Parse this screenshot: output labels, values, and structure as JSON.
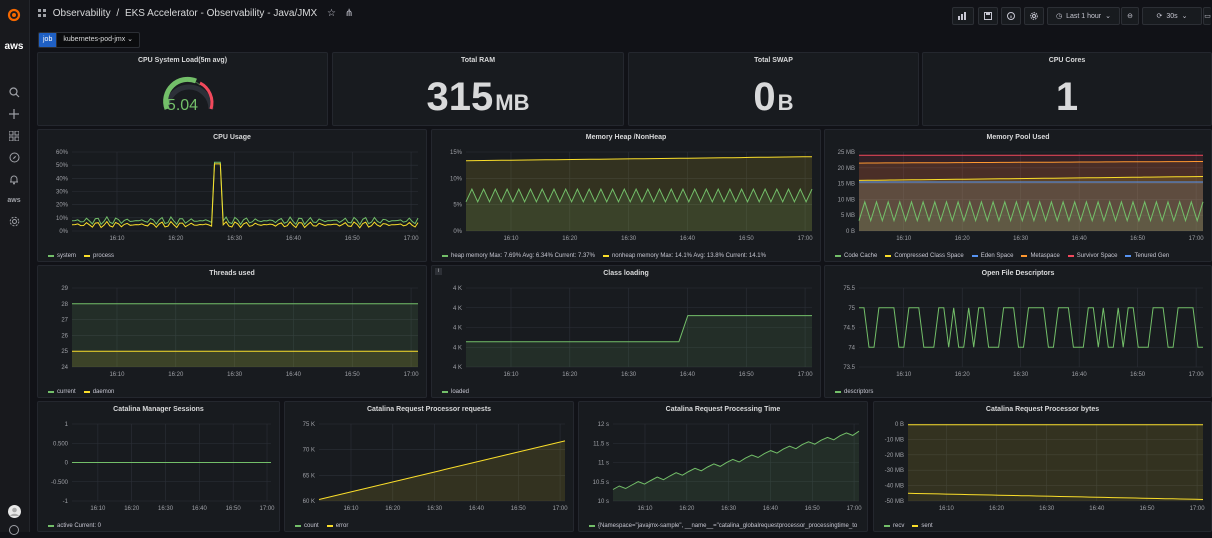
{
  "breadcrumb": {
    "root": "Observability",
    "sep": "/",
    "title": "EKS Accelerator - Observability - Java/JMX"
  },
  "toolbar": {
    "time_range": "Last 1 hour",
    "refresh": "30s"
  },
  "variable": {
    "key": "job",
    "value": "kubernetes-pod-jmx"
  },
  "sidebar": {
    "logo_text": "aws",
    "service_text": "aws"
  },
  "colors": {
    "green": "#73bf69",
    "yellow": "#fade2a",
    "orange": "#ff9830",
    "red": "#f2495c",
    "blue": "#5794f2",
    "grid": "#2c3038",
    "tick": "#9fa1a7"
  },
  "panels": [
    {
      "id": "cpu_load",
      "title": "CPU System Load(5m avg)",
      "value": "5.04",
      "gauge_fraction": 0.72
    },
    {
      "id": "total_ram",
      "title": "Total RAM",
      "value": "315",
      "unit": "MB"
    },
    {
      "id": "total_swap",
      "title": "Total SWAP",
      "value": "0",
      "unit": "B"
    },
    {
      "id": "cpu_cores",
      "title": "CPU Cores",
      "value": "1"
    }
  ],
  "xticks": [
    "16:10",
    "16:20",
    "16:30",
    "16:40",
    "16:50",
    "17:00"
  ],
  "charts": [
    {
      "id": "cpu_usage",
      "title": "CPU Usage",
      "yticks": [
        "60%",
        "50%",
        "40%",
        "30%",
        "20%",
        "10%",
        "0%"
      ],
      "series": [
        {
          "name": "system",
          "color": "#73bf69",
          "kind": "noisy",
          "base": 0.13,
          "amp": 0.05,
          "spike": 0.87
        },
        {
          "name": "process",
          "color": "#fade2a",
          "kind": "noisy",
          "base": 0.08,
          "amp": 0.04,
          "spike": 0.85
        }
      ],
      "legend": [
        {
          "name": "system",
          "color": "#73bf69"
        },
        {
          "name": "process",
          "color": "#fade2a"
        }
      ]
    },
    {
      "id": "mem_heap",
      "title": "Memory Heap /NonHeap",
      "yticks": [
        "15%",
        "10%",
        "5%",
        "0%"
      ],
      "series": [
        {
          "name": "nonheap memory",
          "color": "#fade2a",
          "kind": "flat",
          "from": 0.89,
          "to": 0.94,
          "fill": true
        },
        {
          "name": "heap memory",
          "color": "#73bf69",
          "kind": "zigzag",
          "base": 0.45,
          "amp": 0.08,
          "fill": true
        }
      ],
      "legend": [
        {
          "name": "heap memory",
          "color": "#73bf69",
          "stats": "Max: 7.69%  Avg: 6.34%  Current: 7.37%"
        },
        {
          "name": "nonheap memory",
          "color": "#fade2a",
          "stats": "Max: 14.1%  Avg: 13.8%  Current: 14.1%"
        }
      ]
    },
    {
      "id": "mem_pool",
      "title": "Memory Pool Used",
      "yticks": [
        "25 MB",
        "20 MB",
        "15 MB",
        "10 MB",
        "5 MB",
        "0 B"
      ],
      "series": [
        {
          "name": "Tenured Gen",
          "color": "#f2495c",
          "kind": "flat",
          "from": 0.96,
          "to": 0.96,
          "fill": true
        },
        {
          "name": "Survivor Space",
          "color": "#ff9830",
          "kind": "flat",
          "from": 0.86,
          "to": 0.88,
          "fill": true
        },
        {
          "name": "Compressed Class Space",
          "color": "#fade2a",
          "kind": "flat",
          "from": 0.64,
          "to": 0.69,
          "fill": true
        },
        {
          "name": "Metaspace",
          "color": "#5794f2",
          "kind": "flat",
          "from": 0.62,
          "to": 0.62,
          "fill": true
        },
        {
          "name": "Eden Space",
          "color": "#73bf69",
          "kind": "zigzag",
          "base": 0.25,
          "amp": 0.12,
          "fill": true
        }
      ],
      "legend": [
        {
          "name": "Code Cache",
          "color": "#73bf69"
        },
        {
          "name": "Compressed Class Space",
          "color": "#fade2a"
        },
        {
          "name": "Eden Space",
          "color": "#5794f2"
        },
        {
          "name": "Metaspace",
          "color": "#ff9830"
        },
        {
          "name": "Survivor Space",
          "color": "#f2495c"
        },
        {
          "name": "Tenured Gen",
          "color": "#5794f2"
        }
      ]
    },
    {
      "id": "threads",
      "title": "Threads used",
      "yticks": [
        "29",
        "28",
        "27",
        "26",
        "25",
        "24"
      ],
      "series": [
        {
          "name": "current",
          "color": "#73bf69",
          "kind": "flat",
          "from": 0.8,
          "to": 0.8,
          "fill": true
        },
        {
          "name": "daemon",
          "color": "#fade2a",
          "kind": "flat",
          "from": 0.2,
          "to": 0.2,
          "fill": true
        }
      ],
      "legend": [
        {
          "name": "current",
          "color": "#73bf69"
        },
        {
          "name": "daemon",
          "color": "#fade2a"
        }
      ]
    },
    {
      "id": "class_loading",
      "title": "Class loading",
      "yticks": [
        "4 K",
        "4 K",
        "4 K",
        "4 K",
        "4 K"
      ],
      "series": [
        {
          "name": "loaded",
          "color": "#73bf69",
          "kind": "step",
          "lo": 0.32,
          "hi": 0.65,
          "at": 0.62,
          "fill": true
        }
      ],
      "legend": [
        {
          "name": "loaded",
          "color": "#73bf69"
        }
      ]
    },
    {
      "id": "open_fd",
      "title": "Open File Descriptors",
      "yticks": [
        "75.5",
        "75",
        "74.5",
        "74",
        "73.5"
      ],
      "series": [
        {
          "name": "descriptors",
          "color": "#73bf69",
          "kind": "square",
          "lo": 0.25,
          "hi": 0.75
        }
      ],
      "legend": [
        {
          "name": "descriptors",
          "color": "#73bf69"
        }
      ]
    },
    {
      "id": "mgr_sessions",
      "title": "Catalina Manager Sessions",
      "yticks": [
        "1",
        "0.500",
        "0",
        "-0.500",
        "-1"
      ],
      "series": [
        {
          "name": "active",
          "color": "#73bf69",
          "kind": "flat",
          "from": 0.5,
          "to": 0.5
        }
      ],
      "legend": [
        {
          "name": "active",
          "color": "#73bf69",
          "stats": "Current: 0"
        }
      ]
    },
    {
      "id": "req_requests",
      "title": "Catalina Request Processor requests",
      "yticks": [
        "75 K",
        "70 K",
        "65 K",
        "60 K"
      ],
      "series": [
        {
          "name": "count",
          "color": "#fade2a",
          "kind": "flat",
          "from": 0.02,
          "to": 0.78,
          "fill": true
        }
      ],
      "legend": [
        {
          "name": "count",
          "color": "#73bf69"
        },
        {
          "name": "error",
          "color": "#fade2a"
        }
      ]
    },
    {
      "id": "req_time",
      "title": "Catalina Request Processing Time",
      "yticks": [
        "12 s",
        "11.5 s",
        "11 s",
        "10.5 s",
        "10 s"
      ],
      "series": [
        {
          "name": "processing_time",
          "color": "#73bf69",
          "kind": "wavy",
          "from": 0.15,
          "to": 0.9,
          "fill": true
        }
      ],
      "legend": [
        {
          "name": "{Namespace=\"javajmx-sample\", __name__=\"catalina_globalrequestprocessor_processingtime_to",
          "color": "#73bf69"
        }
      ]
    },
    {
      "id": "req_bytes",
      "title": "Catalina Request Processor bytes",
      "yticks": [
        "0 B",
        "-10 MB",
        "-20 MB",
        "-30 MB",
        "-40 MB",
        "-50 MB"
      ],
      "series": [
        {
          "name": "sent",
          "color": "#fade2a",
          "kind": "flat",
          "from": 0.99,
          "to": 0.99,
          "fill": true
        },
        {
          "name": "recv",
          "color": "#fade2a",
          "kind": "flat",
          "from": 0.1,
          "to": 0.02
        }
      ],
      "legend": [
        {
          "name": "recv",
          "color": "#73bf69"
        },
        {
          "name": "sent",
          "color": "#fade2a"
        }
      ]
    }
  ]
}
